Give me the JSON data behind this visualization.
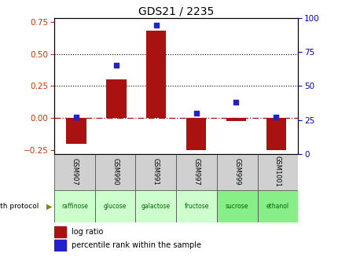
{
  "title": "GDS21 / 2235",
  "samples": [
    "GSM907",
    "GSM990",
    "GSM991",
    "GSM997",
    "GSM999",
    "GSM1001"
  ],
  "protocols": [
    "raffinose",
    "glucose",
    "galactose",
    "fructose",
    "sucrose",
    "ethanol"
  ],
  "log_ratios": [
    -0.2,
    0.3,
    0.68,
    -0.25,
    -0.02,
    -0.25
  ],
  "percentile_ranks": [
    27,
    65,
    95,
    30,
    38,
    27
  ],
  "bar_color": "#aa1111",
  "dot_color": "#2222cc",
  "ylim_left": [
    -0.28,
    0.78
  ],
  "ylim_right": [
    0,
    100
  ],
  "yticks_left": [
    -0.25,
    0.0,
    0.25,
    0.5,
    0.75
  ],
  "yticks_right": [
    0,
    25,
    50,
    75,
    100
  ],
  "dotted_lines": [
    0.25,
    0.5
  ],
  "left_label_color": "#cc3300",
  "right_label_color": "#0000cc",
  "legend_log": "log ratio",
  "legend_pct": "percentile rank within the sample",
  "bar_width": 0.5,
  "gsm_bg": "#d0d0d0",
  "proto_colors": [
    "#ccffcc",
    "#ccffcc",
    "#ccffcc",
    "#ccffcc",
    "#88ee88",
    "#88ee88"
  ],
  "proto_text_color": "#006600",
  "arrow_color": "#888800"
}
